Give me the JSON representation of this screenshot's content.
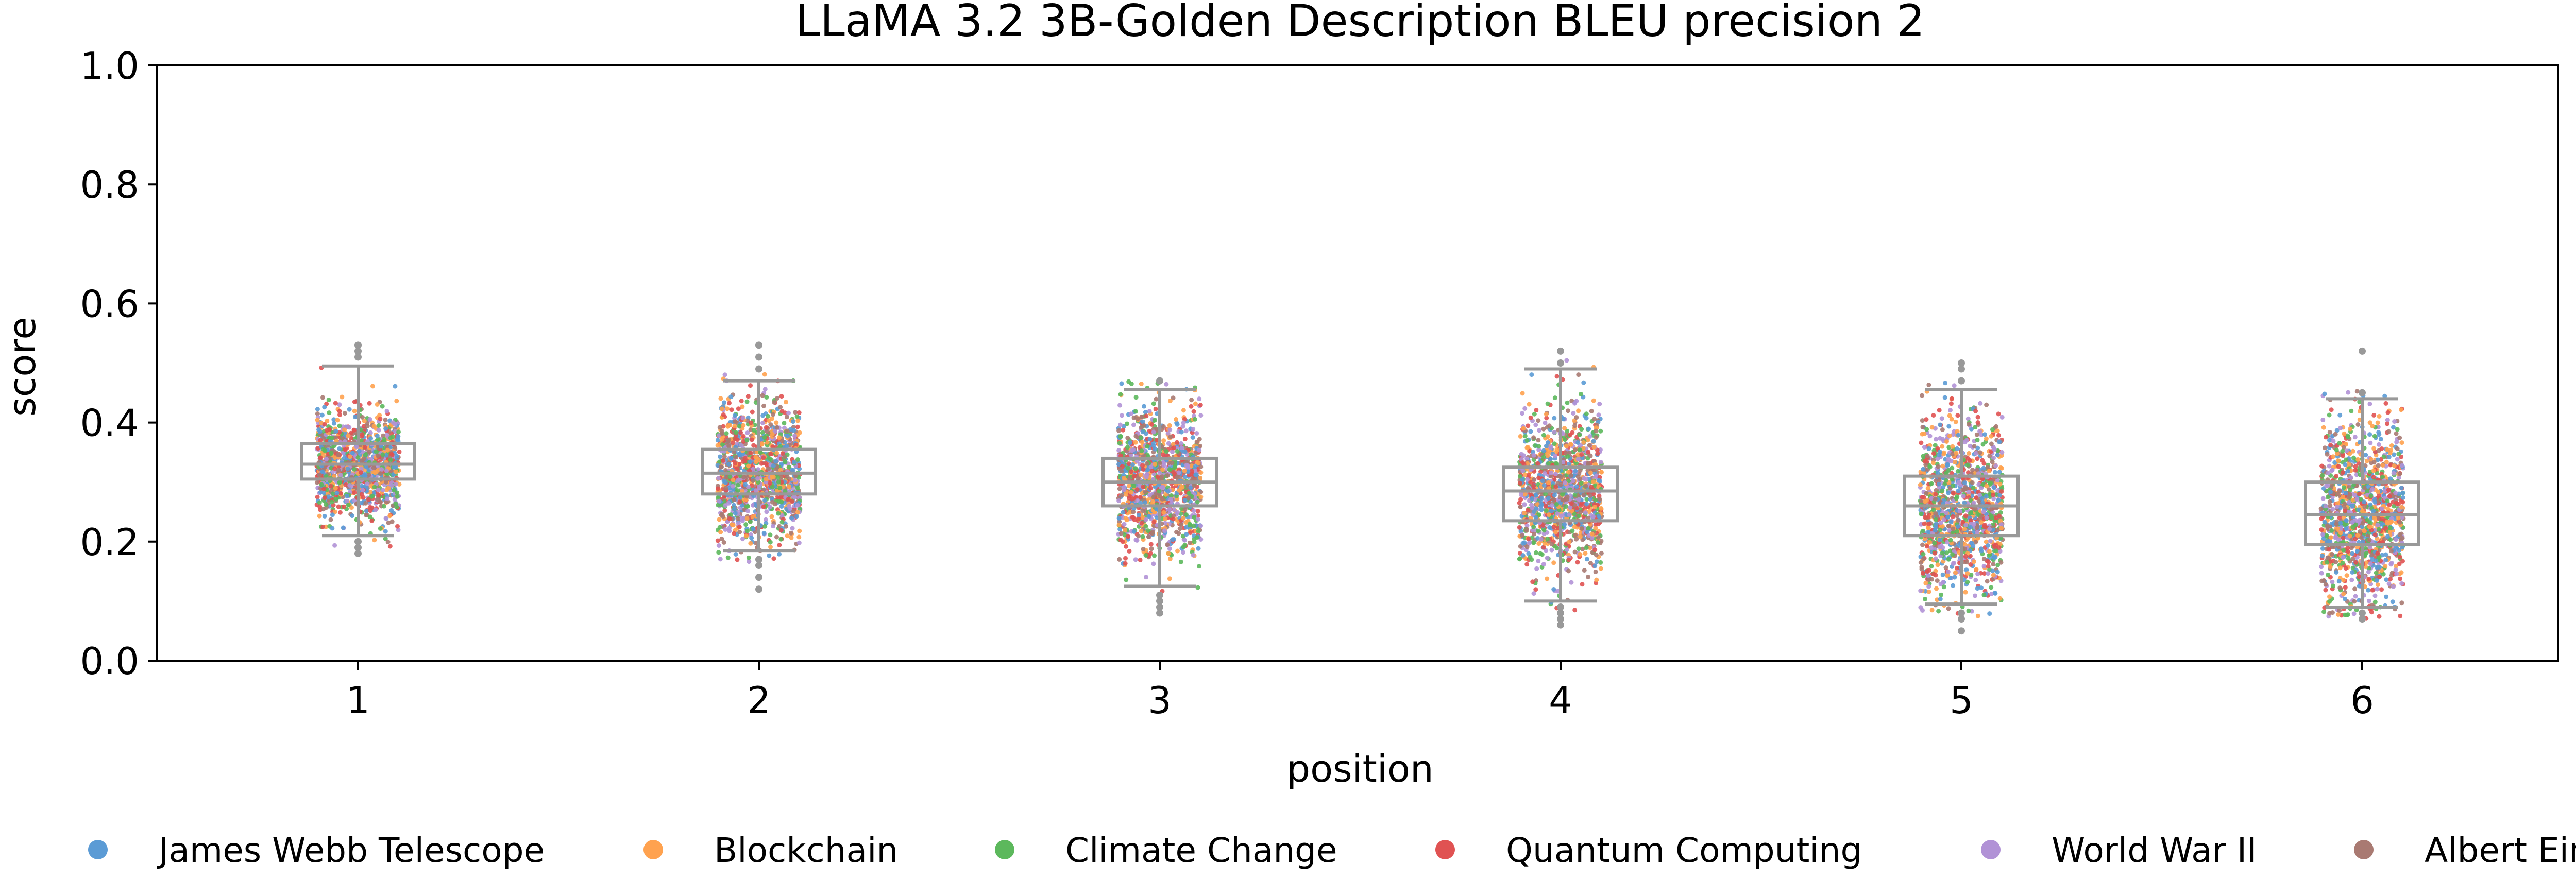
{
  "chart_data": {
    "type": "box-strip",
    "title": "LLaMA 3.2 3B-Golden Description BLEU precision 2",
    "xlabel": "position",
    "ylabel": "score",
    "ylim": [
      0.0,
      1.0
    ],
    "yticks": [
      "0.0",
      "0.2",
      "0.4",
      "0.6",
      "0.8",
      "1.0"
    ],
    "categories": [
      "1",
      "2",
      "3",
      "4",
      "5",
      "6"
    ],
    "grid": false,
    "legend_position": "bottom",
    "series": [
      {
        "name": "James Webb Telescope",
        "color": "#5b9bd5"
      },
      {
        "name": "Blockchain",
        "color": "#ffa24f"
      },
      {
        "name": "Climate Change",
        "color": "#5cb85c"
      },
      {
        "name": "Quantum Computing",
        "color": "#e05252"
      },
      {
        "name": "World War II",
        "color": "#b192d6"
      },
      {
        "name": "Albert Einstein",
        "color": "#a97a72"
      }
    ],
    "boxes": [
      {
        "position": "1",
        "whisker_low": 0.21,
        "q1": 0.305,
        "median": 0.33,
        "q3": 0.365,
        "whisker_high": 0.495,
        "outliers": [
          0.18,
          0.19,
          0.2,
          0.51,
          0.52,
          0.53
        ]
      },
      {
        "position": "2",
        "whisker_low": 0.185,
        "q1": 0.28,
        "median": 0.315,
        "q3": 0.355,
        "whisker_high": 0.47,
        "outliers": [
          0.12,
          0.14,
          0.16,
          0.17,
          0.49,
          0.51,
          0.53
        ]
      },
      {
        "position": "3",
        "whisker_low": 0.125,
        "q1": 0.26,
        "median": 0.3,
        "q3": 0.34,
        "whisker_high": 0.455,
        "outliers": [
          0.08,
          0.09,
          0.1,
          0.11,
          0.47
        ]
      },
      {
        "position": "4",
        "whisker_low": 0.1,
        "q1": 0.235,
        "median": 0.285,
        "q3": 0.325,
        "whisker_high": 0.49,
        "outliers": [
          0.06,
          0.07,
          0.08,
          0.09,
          0.5,
          0.52
        ]
      },
      {
        "position": "5",
        "whisker_low": 0.095,
        "q1": 0.21,
        "median": 0.26,
        "q3": 0.31,
        "whisker_high": 0.455,
        "outliers": [
          0.05,
          0.07,
          0.08,
          0.47,
          0.49,
          0.5
        ]
      },
      {
        "position": "6",
        "whisker_low": 0.09,
        "q1": 0.195,
        "median": 0.245,
        "q3": 0.3,
        "whisker_high": 0.44,
        "outliers": [
          0.07,
          0.08,
          0.45,
          0.52
        ]
      }
    ],
    "points_per_position": 1200,
    "box_color": "#999999"
  }
}
